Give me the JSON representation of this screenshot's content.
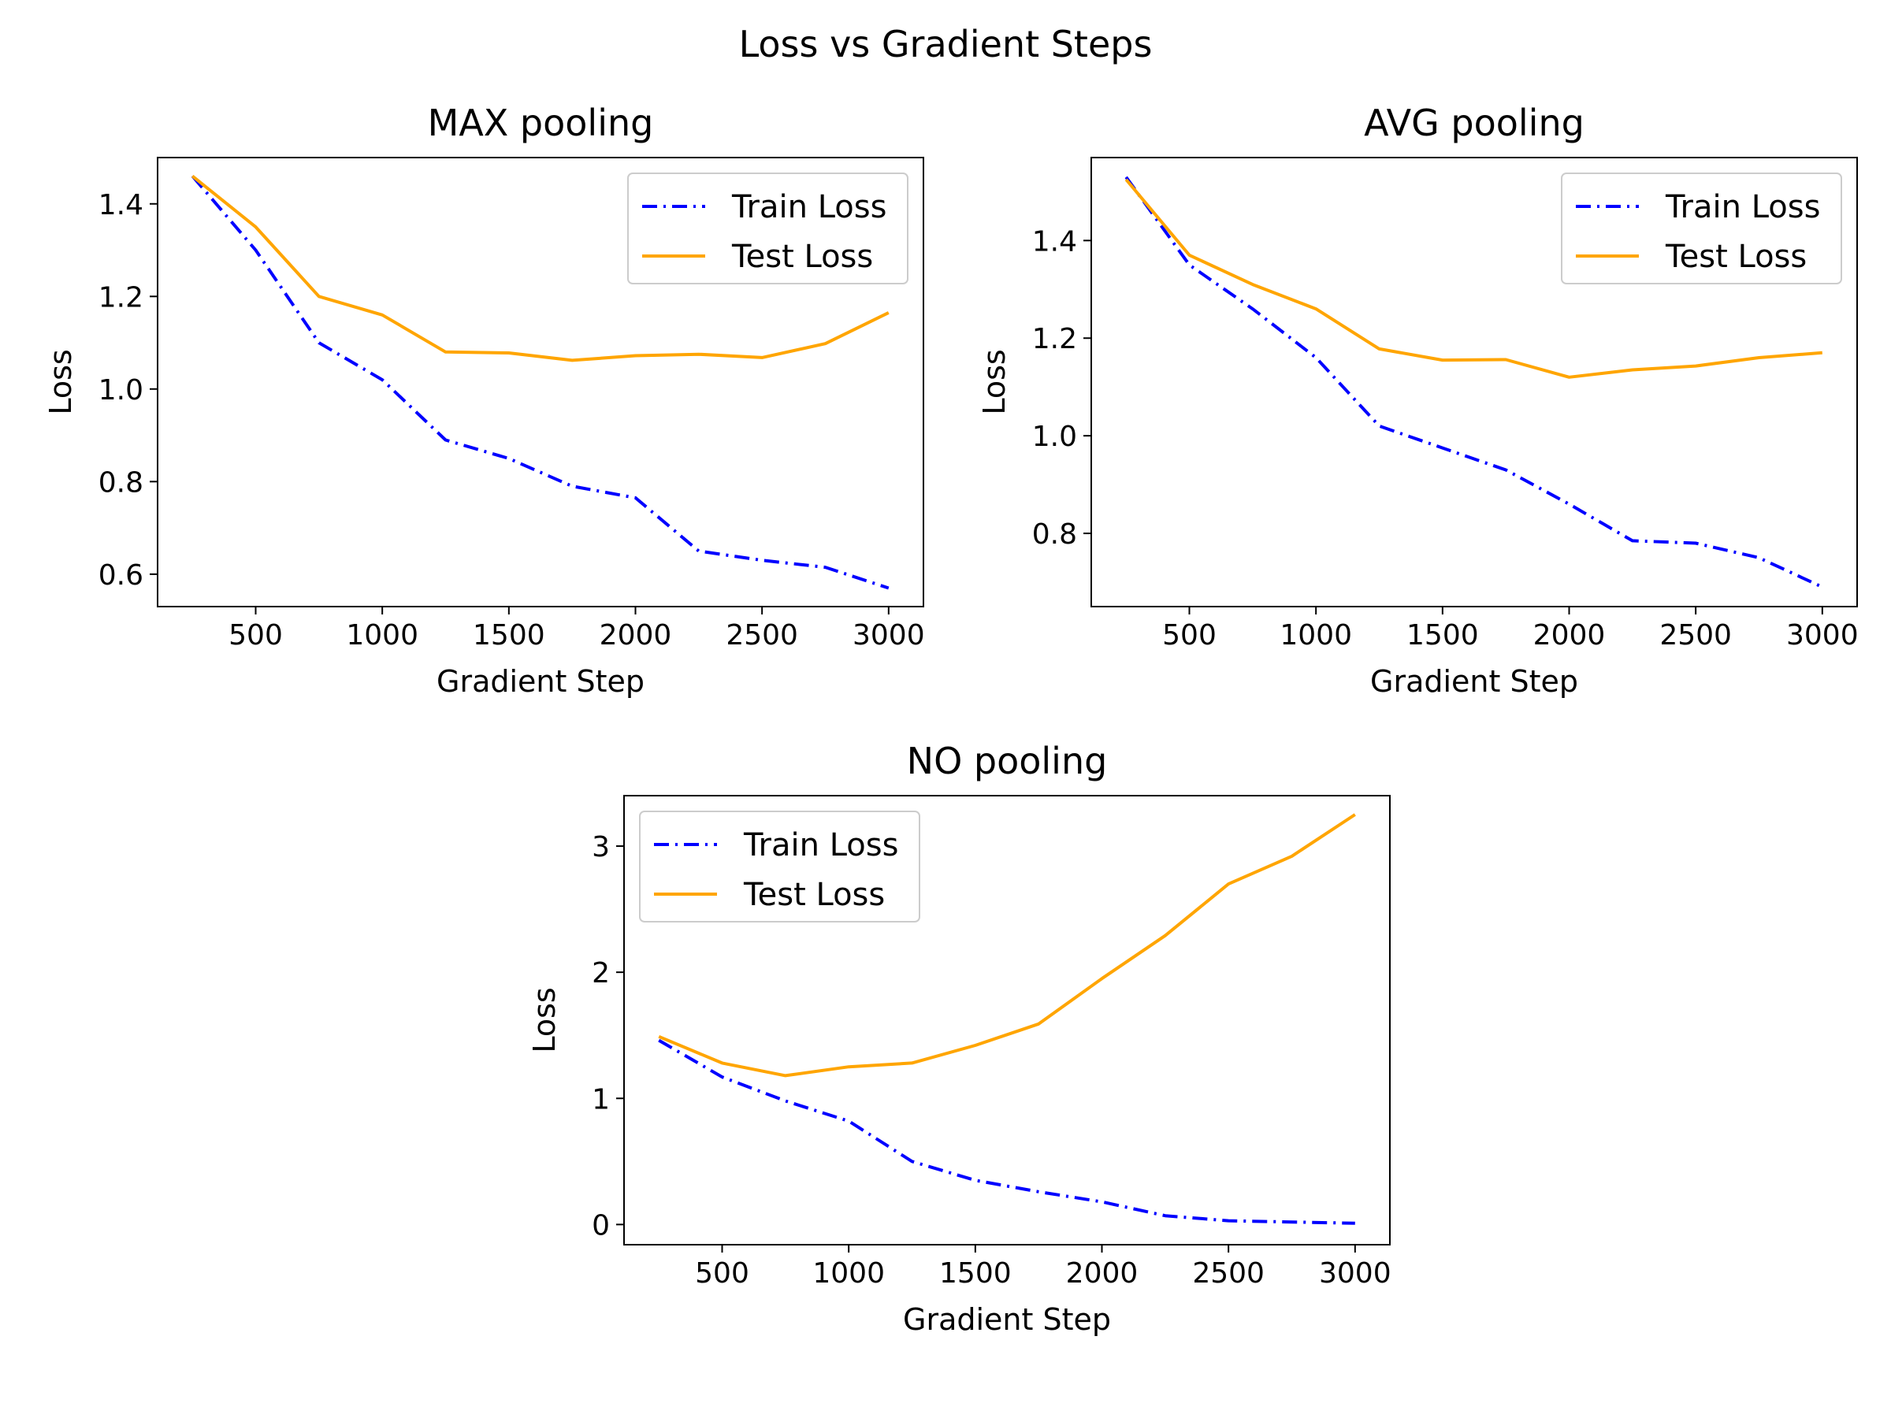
{
  "figure": {
    "suptitle": "Loss vs Gradient Steps"
  },
  "colors": {
    "train": "#0000ff",
    "test": "#ffa500",
    "axes": "#000000",
    "legend_border": "#cccccc"
  },
  "chart_data": [
    {
      "type": "line",
      "title": "MAX pooling",
      "xlabel": "Gradient Step",
      "ylabel": "Loss",
      "xlim": [
        112.5,
        3137.5
      ],
      "ylim": [
        0.53,
        1.5
      ],
      "xticks": [
        500,
        1000,
        1500,
        2000,
        2500,
        3000
      ],
      "yticks": [
        0.6,
        0.8,
        1.0,
        1.2,
        1.4
      ],
      "ytick_labels": [
        "0.6",
        "0.8",
        "1.0",
        "1.2",
        "1.4"
      ],
      "grid": false,
      "legend": "upper right",
      "x": [
        250,
        500,
        750,
        1000,
        1250,
        1500,
        1750,
        2000,
        2250,
        2500,
        2750,
        3000
      ],
      "series": [
        {
          "name": "Train Loss",
          "style": "dashdot",
          "color": "#0000ff",
          "values": [
            1.46,
            1.3,
            1.1,
            1.02,
            0.89,
            0.85,
            0.79,
            0.765,
            0.65,
            0.63,
            0.615,
            0.57
          ]
        },
        {
          "name": "Test Loss",
          "style": "solid",
          "color": "#ffa500",
          "values": [
            1.46,
            1.35,
            1.2,
            1.16,
            1.08,
            1.078,
            1.062,
            1.072,
            1.075,
            1.068,
            1.098,
            1.165
          ]
        }
      ]
    },
    {
      "type": "line",
      "title": "AVG pooling",
      "xlabel": "Gradient Step",
      "ylabel": "Loss",
      "xlim": [
        112.5,
        3137.5
      ],
      "ylim": [
        0.65,
        1.57
      ],
      "xticks": [
        500,
        1000,
        1500,
        2000,
        2500,
        3000
      ],
      "yticks": [
        0.8,
        1.0,
        1.2,
        1.4
      ],
      "ytick_labels": [
        "0.8",
        "1.0",
        "1.2",
        "1.4"
      ],
      "grid": false,
      "legend": "upper right",
      "x": [
        250,
        500,
        750,
        1000,
        1250,
        1500,
        1750,
        2000,
        2250,
        2500,
        2750,
        3000
      ],
      "series": [
        {
          "name": "Train Loss",
          "style": "dashdot",
          "color": "#0000ff",
          "values": [
            1.53,
            1.35,
            1.26,
            1.16,
            1.02,
            0.975,
            0.93,
            0.86,
            0.785,
            0.78,
            0.75,
            0.69
          ]
        },
        {
          "name": "Test Loss",
          "style": "solid",
          "color": "#ffa500",
          "values": [
            1.525,
            1.37,
            1.31,
            1.26,
            1.178,
            1.155,
            1.156,
            1.12,
            1.135,
            1.143,
            1.16,
            1.17
          ]
        }
      ]
    },
    {
      "type": "line",
      "title": "NO pooling",
      "xlabel": "Gradient Step",
      "ylabel": "Loss",
      "xlim": [
        112.5,
        3137.5
      ],
      "ylim": [
        -0.16,
        3.4
      ],
      "xticks": [
        500,
        1000,
        1500,
        2000,
        2500,
        3000
      ],
      "yticks": [
        0,
        1,
        2,
        3
      ],
      "ytick_labels": [
        "0",
        "1",
        "2",
        "3"
      ],
      "grid": false,
      "legend": "upper left",
      "x": [
        250,
        500,
        750,
        1000,
        1250,
        1500,
        1750,
        2000,
        2250,
        2500,
        2750,
        3000
      ],
      "series": [
        {
          "name": "Train Loss",
          "style": "dashdot",
          "color": "#0000ff",
          "values": [
            1.46,
            1.17,
            0.98,
            0.82,
            0.5,
            0.35,
            0.26,
            0.18,
            0.07,
            0.03,
            0.02,
            0.01
          ]
        },
        {
          "name": "Test Loss",
          "style": "solid",
          "color": "#ffa500",
          "values": [
            1.49,
            1.28,
            1.18,
            1.25,
            1.28,
            1.42,
            1.59,
            1.95,
            2.29,
            2.7,
            2.92,
            3.25
          ]
        }
      ]
    }
  ]
}
